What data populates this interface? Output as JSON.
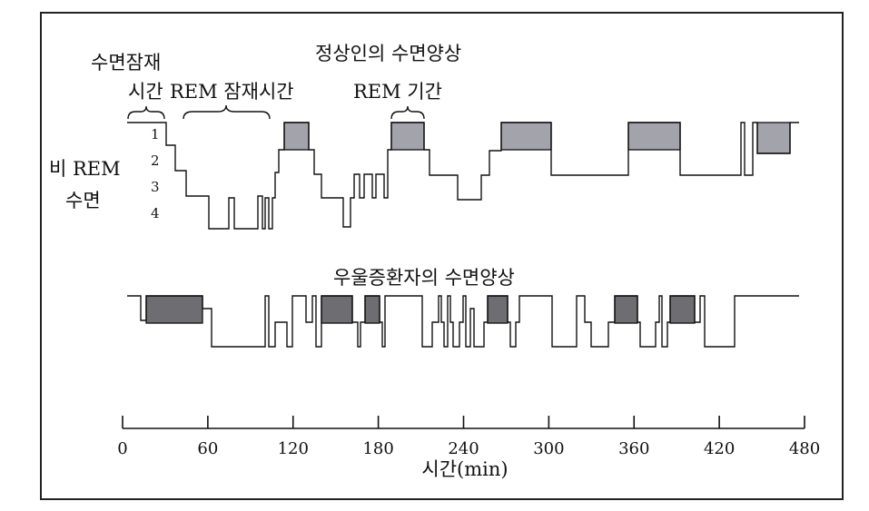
{
  "labels": {
    "latency_line1": "수면잠재",
    "latency_line2": "시간",
    "rem_latency": "REM 잠재시간",
    "normal_title": "정상인의 수면양상",
    "rem_period": "REM 기간",
    "nrem_line1": "비 REM",
    "nrem_line2": "수면",
    "stage1": "1",
    "stage2": "2",
    "stage3": "3",
    "stage4": "4",
    "depressed_title": "우울증환자의 수면양상",
    "axis_title": "시간(min)"
  },
  "axis": {
    "ticks": [
      "0",
      "60",
      "120",
      "180",
      "240",
      "300",
      "360",
      "420",
      "480"
    ]
  },
  "colors": {
    "rem_normal": "#a3a3ab",
    "rem_depressed": "#6d6d72",
    "line": "#111111",
    "border": "#222222"
  }
}
